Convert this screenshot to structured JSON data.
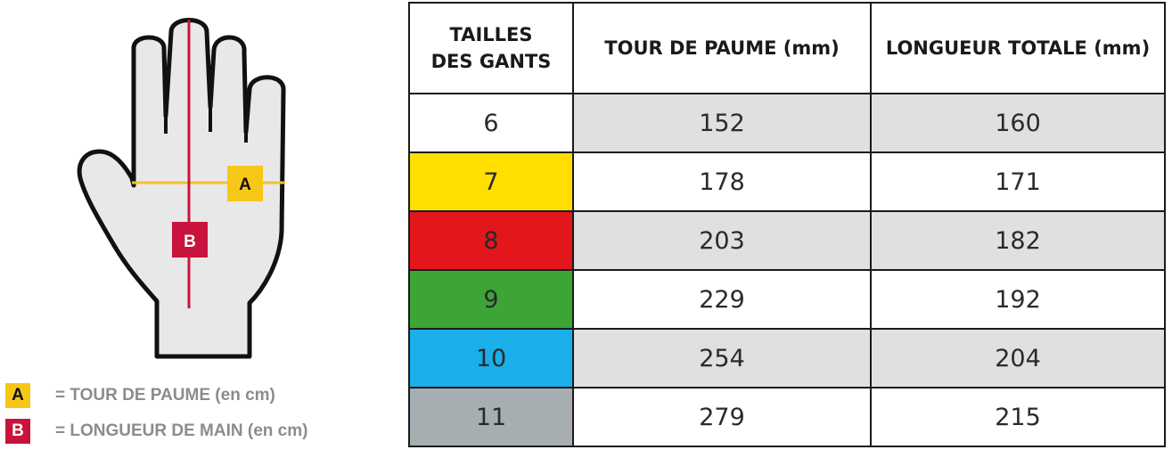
{
  "legend": [
    {
      "key": "A",
      "text": "= TOUR DE PAUME (en cm)",
      "color": "#f7c718"
    },
    {
      "key": "B",
      "text": "= LONGUEUR DE MAIN (en cm)",
      "color": "#c8143c"
    }
  ],
  "hand": {
    "label_a": "A",
    "label_b": "B",
    "line_a_color": "#f2c12e",
    "line_b_color": "#c8143c"
  },
  "table": {
    "headers": {
      "size_line1": "TAILLES",
      "size_line2": "DES GANTS",
      "palm": "TOUR DE PAUME (mm)",
      "length": "LONGUEUR TOTALE (mm)"
    },
    "rows": [
      {
        "size": "6",
        "palm": "152",
        "length": "160",
        "color": "#ffffff"
      },
      {
        "size": "7",
        "palm": "178",
        "length": "171",
        "color": "#ffde00"
      },
      {
        "size": "8",
        "palm": "203",
        "length": "182",
        "color": "#e3161b"
      },
      {
        "size": "9",
        "palm": "229",
        "length": "192",
        "color": "#3da535"
      },
      {
        "size": "10",
        "palm": "254",
        "length": "204",
        "color": "#1aaeea"
      },
      {
        "size": "11",
        "palm": "279",
        "length": "215",
        "color": "#a7aeb2"
      }
    ]
  }
}
